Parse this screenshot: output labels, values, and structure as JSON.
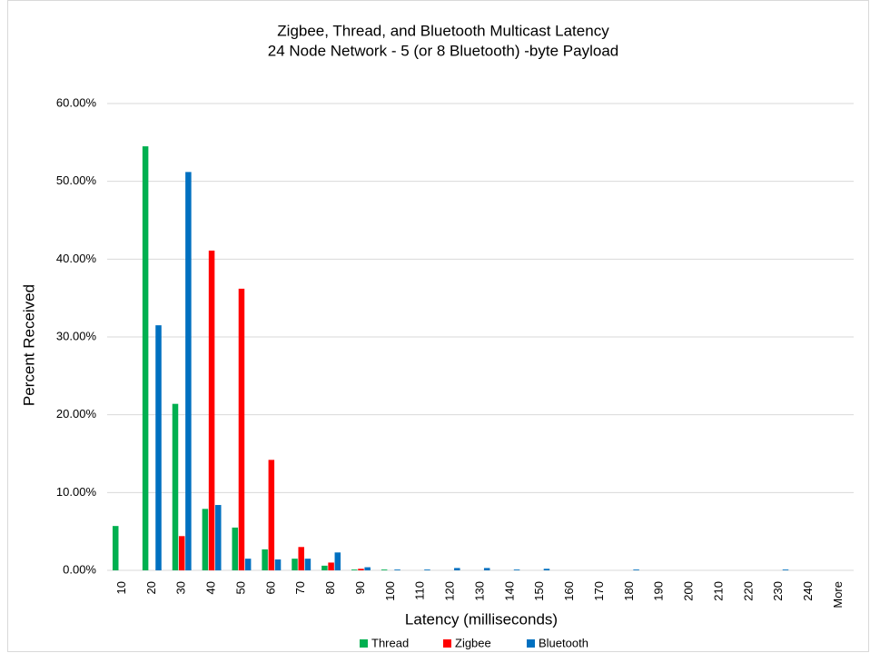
{
  "chart_data": {
    "type": "bar",
    "title": "Zigbee, Thread, and Bluetooth Multicast Latency",
    "subtitle": "24 Node Network - 5 (or 8 Bluetooth) -byte Payload",
    "x_label": "Latency (milliseconds)",
    "y_label": "Percent Received",
    "categories": [
      "10",
      "20",
      "30",
      "40",
      "50",
      "60",
      "70",
      "80",
      "90",
      "100",
      "110",
      "120",
      "130",
      "140",
      "150",
      "160",
      "170",
      "180",
      "190",
      "200",
      "210",
      "220",
      "230",
      "240",
      "More"
    ],
    "series": [
      {
        "name": "Thread",
        "color": "#00b050",
        "values": [
          5.7,
          54.5,
          21.4,
          7.9,
          5.5,
          2.7,
          1.5,
          0.6,
          0.1,
          0.1,
          0,
          0,
          0,
          0,
          0,
          0,
          0,
          0,
          0,
          0,
          0,
          0,
          0,
          0,
          0
        ]
      },
      {
        "name": "Zigbee",
        "color": "#ff0000",
        "values": [
          0,
          0,
          4.4,
          41.1,
          36.2,
          14.2,
          3.0,
          1.0,
          0.2,
          0,
          0,
          0,
          0,
          0,
          0,
          0,
          0,
          0,
          0,
          0,
          0,
          0,
          0,
          0,
          0
        ]
      },
      {
        "name": "Bluetooth",
        "color": "#0070c0",
        "values": [
          0,
          31.5,
          51.2,
          8.4,
          1.5,
          1.4,
          1.5,
          2.3,
          0.4,
          0.1,
          0.1,
          0.3,
          0.3,
          0.1,
          0.2,
          0,
          0,
          0.1,
          0,
          0,
          0,
          0,
          0.1,
          0,
          0
        ]
      }
    ],
    "ylim": [
      0,
      60
    ],
    "yticks": [
      {
        "value": 0,
        "label": "0.00%"
      },
      {
        "value": 10,
        "label": "10.00%"
      },
      {
        "value": 20,
        "label": "20.00%"
      },
      {
        "value": 30,
        "label": "30.00%"
      },
      {
        "value": 40,
        "label": "40.00%"
      },
      {
        "value": 50,
        "label": "50.00%"
      },
      {
        "value": 60,
        "label": "60.00%"
      }
    ],
    "grid": true,
    "legend": "bottom"
  }
}
